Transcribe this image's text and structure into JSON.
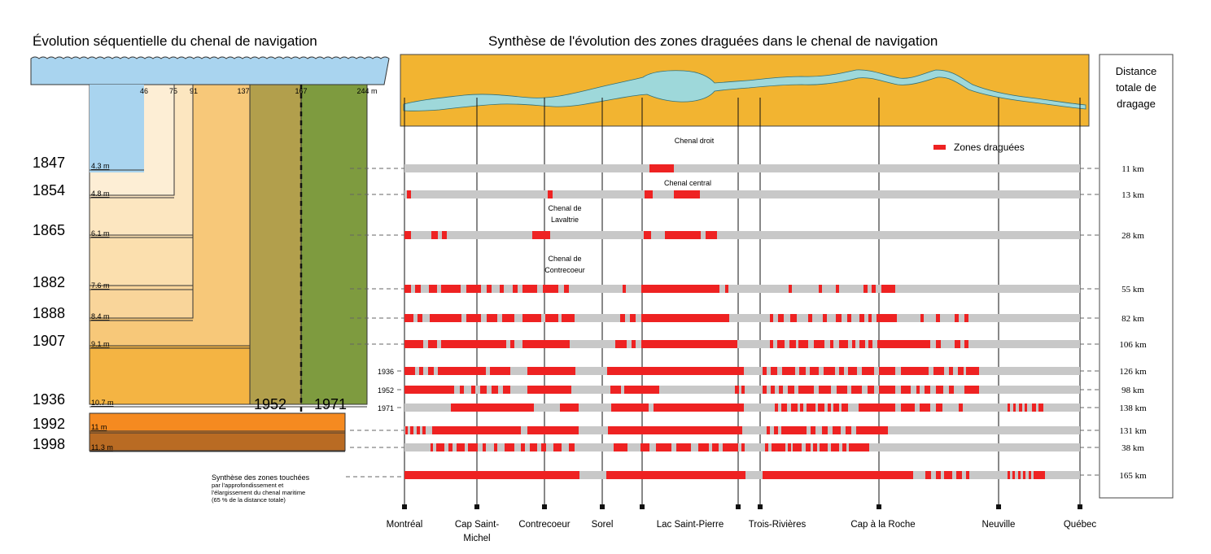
{
  "titles": {
    "left": "Évolution séquentielle du chenal de navigation",
    "right": "Synthèse de l'évolution des zones draguées dans le chenal de navigation",
    "distance_header": [
      "Distance",
      "totale de",
      "dragage"
    ]
  },
  "colors": {
    "water": "#a9d4ef",
    "land": "#f2b431",
    "dredged": "#ee2222",
    "channel": "#c8c8c8",
    "river": "#9ed8da"
  },
  "width_ticks": [
    {
      "label": "46"
    },
    {
      "label": "75"
    },
    {
      "label": "91"
    },
    {
      "label": "137"
    },
    {
      "label": "167"
    },
    {
      "label": "244 m"
    }
  ],
  "period_labels": {
    "p1952": "1952",
    "p1971": "1971"
  },
  "depth_rows": [
    {
      "year": "1847",
      "depth": "4.3 m"
    },
    {
      "year": "1854",
      "depth": "4.8 m"
    },
    {
      "year": "1865",
      "depth": "6.1 m"
    },
    {
      "year": "1882",
      "depth": "7.6 m"
    },
    {
      "year": "1888",
      "depth": "8.4 m"
    },
    {
      "year": "1907",
      "depth": "9.1 m"
    },
    {
      "year": "1936",
      "depth": "10.7 m"
    },
    {
      "year": "1992",
      "depth": "11 m"
    },
    {
      "year": "1998",
      "depth": "11.3 m"
    }
  ],
  "channel_labels": [
    {
      "lines": [
        "Chenal droit"
      ]
    },
    {
      "lines": [
        "Chenal central"
      ]
    },
    {
      "lines": [
        "Chenal de",
        "Lavaltrie"
      ]
    },
    {
      "lines": [
        "Chenal de",
        "Contrecoeur"
      ]
    }
  ],
  "legend": {
    "label": "Zones draguées"
  },
  "bar_rows": [
    {
      "year": "1847",
      "side_label": "",
      "distance": "11 km",
      "segments": [
        [
          798,
          828
        ]
      ]
    },
    {
      "year": "1854",
      "side_label": "",
      "distance": "13 km",
      "segments": [
        [
          500,
          505
        ],
        [
          673,
          679
        ],
        [
          792,
          802
        ],
        [
          828,
          860
        ]
      ]
    },
    {
      "year": "1865",
      "side_label": "",
      "distance": "28 km",
      "segments": [
        [
          497,
          505
        ],
        [
          530,
          538
        ],
        [
          543,
          549
        ],
        [
          654,
          676
        ],
        [
          791,
          800
        ],
        [
          817,
          861
        ],
        [
          867,
          881
        ]
      ]
    },
    {
      "year": "1882",
      "side_label": "",
      "distance": "55 km",
      "segments": [
        [
          497,
          505
        ],
        [
          510,
          517
        ],
        [
          527,
          537
        ],
        [
          542,
          566
        ],
        [
          573,
          591
        ],
        [
          598,
          604
        ],
        [
          614,
          619
        ],
        [
          630,
          636
        ],
        [
          642,
          660
        ],
        [
          667,
          686
        ],
        [
          693,
          699
        ],
        [
          765,
          769
        ],
        [
          788,
          884
        ],
        [
          891,
          895
        ],
        [
          969,
          973
        ],
        [
          1006,
          1010
        ],
        [
          1027,
          1031
        ],
        [
          1061,
          1066
        ],
        [
          1071,
          1076
        ],
        [
          1083,
          1100
        ]
      ]
    },
    {
      "year": "1888",
      "side_label": "",
      "distance": "82 km",
      "segments": [
        [
          497,
          508
        ],
        [
          513,
          519
        ],
        [
          528,
          567
        ],
        [
          573,
          591
        ],
        [
          598,
          611
        ],
        [
          617,
          632
        ],
        [
          642,
          665
        ],
        [
          670,
          686
        ],
        [
          690,
          706
        ],
        [
          762,
          768
        ],
        [
          774,
          781
        ],
        [
          788,
          896
        ],
        [
          946,
          950
        ],
        [
          956,
          963
        ],
        [
          971,
          979
        ],
        [
          993,
          998
        ],
        [
          1011,
          1016
        ],
        [
          1027,
          1034
        ],
        [
          1041,
          1046
        ],
        [
          1056,
          1062
        ],
        [
          1067,
          1071
        ],
        [
          1077,
          1102
        ],
        [
          1131,
          1135
        ],
        [
          1150,
          1155
        ],
        [
          1173,
          1178
        ],
        [
          1185,
          1190
        ]
      ]
    },
    {
      "year": "1907",
      "side_label": "",
      "distance": "106 km",
      "segments": [
        [
          497,
          520
        ],
        [
          526,
          537
        ],
        [
          542,
          622
        ],
        [
          627,
          632
        ],
        [
          642,
          700
        ],
        [
          756,
          770
        ],
        [
          776,
          781
        ],
        [
          788,
          906
        ],
        [
          946,
          950
        ],
        [
          955,
          964
        ],
        [
          970,
          978
        ],
        [
          981,
          993
        ],
        [
          1000,
          1013
        ],
        [
          1020,
          1024
        ],
        [
          1031,
          1042
        ],
        [
          1047,
          1051
        ],
        [
          1056,
          1063
        ],
        [
          1067,
          1072
        ],
        [
          1078,
          1143
        ],
        [
          1150,
          1156
        ],
        [
          1173,
          1180
        ],
        [
          1185,
          1190
        ]
      ]
    },
    {
      "year": "1936",
      "side_label": "1936",
      "distance": "126 km",
      "segments": [
        [
          497,
          510
        ],
        [
          515,
          520
        ],
        [
          526,
          533
        ],
        [
          538,
          597
        ],
        [
          602,
          627
        ],
        [
          648,
          707
        ],
        [
          746,
          914
        ],
        [
          937,
          942
        ],
        [
          947,
          955
        ],
        [
          961,
          977
        ],
        [
          982,
          990
        ],
        [
          995,
          1006
        ],
        [
          1012,
          1026
        ],
        [
          1031,
          1037
        ],
        [
          1042,
          1053
        ],
        [
          1059,
          1074
        ],
        [
          1080,
          1100
        ],
        [
          1107,
          1141
        ],
        [
          1147,
          1160
        ],
        [
          1166,
          1171
        ],
        [
          1177,
          1184
        ],
        [
          1187,
          1203
        ]
      ]
    },
    {
      "year": "1952",
      "side_label": "1952",
      "distance": "98 km",
      "segments": [
        [
          497,
          558
        ],
        [
          565,
          570
        ],
        [
          579,
          584
        ],
        [
          590,
          598
        ],
        [
          604,
          612
        ],
        [
          618,
          627
        ],
        [
          648,
          702
        ],
        [
          750,
          763
        ],
        [
          767,
          810
        ],
        [
          903,
          908
        ],
        [
          911,
          915
        ],
        [
          937,
          942
        ],
        [
          947,
          952
        ],
        [
          957,
          962
        ],
        [
          968,
          976
        ],
        [
          981,
          1000
        ],
        [
          1006,
          1021
        ],
        [
          1028,
          1041
        ],
        [
          1046,
          1059
        ],
        [
          1066,
          1074
        ],
        [
          1080,
          1100
        ],
        [
          1107,
          1119
        ],
        [
          1126,
          1130
        ],
        [
          1136,
          1143
        ],
        [
          1150,
          1159
        ],
        [
          1166,
          1172
        ],
        [
          1185,
          1203
        ]
      ]
    },
    {
      "year": "1971",
      "side_label": "1971",
      "distance": "138 km",
      "segments": [
        [
          554,
          656
        ],
        [
          688,
          711
        ],
        [
          751,
          797
        ],
        [
          803,
          914
        ],
        [
          952,
          956
        ],
        [
          960,
          967
        ],
        [
          972,
          980
        ],
        [
          983,
          987
        ],
        [
          991,
          1002
        ],
        [
          1005,
          1013
        ],
        [
          1017,
          1021
        ],
        [
          1024,
          1031
        ],
        [
          1034,
          1042
        ],
        [
          1055,
          1100
        ],
        [
          1107,
          1124
        ],
        [
          1130,
          1143
        ],
        [
          1150,
          1158
        ],
        [
          1178,
          1183
        ],
        [
          1238,
          1241
        ],
        [
          1245,
          1248
        ],
        [
          1252,
          1256
        ],
        [
          1259,
          1262
        ],
        [
          1268,
          1273
        ],
        [
          1276,
          1282
        ]
      ]
    },
    {
      "year": "1992",
      "side_label": "",
      "distance": "131 km",
      "segments": [
        [
          498,
          501
        ],
        [
          504,
          508
        ],
        [
          512,
          516
        ],
        [
          519,
          523
        ],
        [
          531,
          640
        ],
        [
          648,
          711
        ],
        [
          747,
          912
        ],
        [
          942,
          946
        ],
        [
          951,
          956
        ],
        [
          960,
          991
        ],
        [
          996,
          1002
        ],
        [
          1010,
          1017
        ],
        [
          1023,
          1033
        ],
        [
          1039,
          1046
        ],
        [
          1052,
          1091
        ]
      ]
    },
    {
      "year": "1998",
      "side_label": "",
      "distance": "38 km",
      "segments": [
        [
          529,
          532
        ],
        [
          536,
          546
        ],
        [
          551,
          556
        ],
        [
          561,
          571
        ],
        [
          575,
          587
        ],
        [
          593,
          597
        ],
        [
          607,
          611
        ],
        [
          620,
          632
        ],
        [
          640,
          645
        ],
        [
          651,
          660
        ],
        [
          665,
          671
        ],
        [
          680,
          690
        ],
        [
          699,
          706
        ],
        [
          754,
          771
        ],
        [
          787,
          798
        ],
        [
          806,
          825
        ],
        [
          831,
          849
        ],
        [
          858,
          871
        ],
        [
          875,
          883
        ],
        [
          888,
          907
        ],
        [
          911,
          915
        ],
        [
          940,
          944
        ],
        [
          948,
          965
        ],
        [
          968,
          972
        ],
        [
          974,
          985
        ],
        [
          990,
          996
        ],
        [
          999,
          1004
        ],
        [
          1007,
          1017
        ],
        [
          1021,
          1031
        ],
        [
          1035,
          1040
        ],
        [
          1043,
          1068
        ]
      ]
    },
    {
      "year": "Synthèse",
      "side_label": "",
      "distance": "165 km",
      "segments": [
        [
          497,
          712
        ],
        [
          745,
          916
        ],
        [
          937,
          1122
        ],
        [
          1137,
          1144
        ],
        [
          1150,
          1156
        ],
        [
          1160,
          1170
        ],
        [
          1175,
          1182
        ],
        [
          1187,
          1191
        ],
        [
          1238,
          1241
        ],
        [
          1244,
          1247
        ],
        [
          1251,
          1254
        ],
        [
          1257,
          1260
        ],
        [
          1264,
          1267
        ],
        [
          1270,
          1284
        ]
      ]
    }
  ],
  "synthesis_label": [
    "Synthèse des zones touchées",
    "par l'approfondissement et",
    "l'élargissement du chenal maritime",
    "(65 % de la distance totale)"
  ],
  "places": [
    {
      "label": "Montréal"
    },
    {
      "label": "Cap Saint-",
      "label2": "Michel"
    },
    {
      "label": "Contrecoeur"
    },
    {
      "label": "Sorel"
    },
    {
      "label": "Lac Saint-Pierre"
    },
    {
      "label": "Trois-Rivières"
    },
    {
      "label": "Cap à la Roche"
    },
    {
      "label": "Neuville"
    },
    {
      "label": "Québec"
    }
  ]
}
